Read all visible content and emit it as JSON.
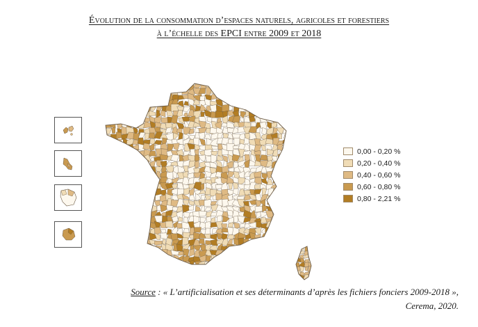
{
  "header": {
    "title_line1": "Évolution de la consommation d’espaces naturels, agricoles et forestiers",
    "title_line2": "à l’échelle des EPCI entre 2009 et 2018"
  },
  "map": {
    "insets": [
      "guadeloupe",
      "martinique",
      "guyane",
      "la-reunion"
    ],
    "colors": {
      "outline": "#6b5a44",
      "class_1": "#fdf8ee",
      "class_2": "#f0dcb6",
      "class_3": "#dfba84",
      "class_4": "#c99a50",
      "class_5": "#b27d24"
    }
  },
  "legend": {
    "items": [
      {
        "label": "0,00 - 0,20 %",
        "color": "#fdf8ee"
      },
      {
        "label": "0,20 - 0,40 %",
        "color": "#f0dcb6"
      },
      {
        "label": "0,40 - 0,60 %",
        "color": "#dfba84"
      },
      {
        "label": "0,60 - 0,80 %",
        "color": "#c99a50"
      },
      {
        "label": "0,80 - 2,21 %",
        "color": "#b27d24"
      }
    ]
  },
  "source": {
    "label": "Source",
    "text": " : « L’artificialisation et ses déterminants d’après les fichiers fonciers 2009-2018 »,",
    "line2": "Cerema, 2020."
  }
}
